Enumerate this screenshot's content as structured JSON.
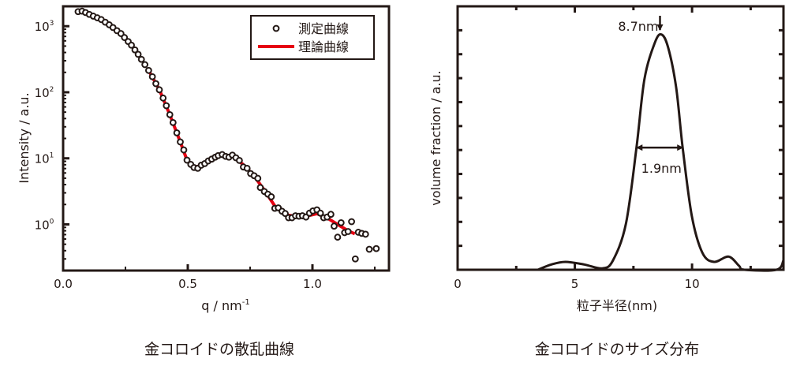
{
  "chart_data": [
    {
      "type": "scatter",
      "caption": "金コロイドの散乱曲線",
      "xlabel": "q / nm",
      "xlabel_superscript": "-1",
      "ylabel": "Intensity / a.u.",
      "xlim": [
        0,
        1.307
      ],
      "ylim": [
        0.2,
        2000
      ],
      "yscale": "log",
      "xticks": [
        0.0,
        0.5,
        1.0
      ],
      "xtick_labels": [
        "0.0",
        "0.5",
        "1.0"
      ],
      "yticks": [
        1,
        10,
        100,
        1000
      ],
      "ytick_labels": [
        {
          "base": "10",
          "exp": "0"
        },
        {
          "base": "10",
          "exp": "1"
        },
        {
          "base": "10",
          "exp": "2"
        },
        {
          "base": "10",
          "exp": "3"
        }
      ],
      "grid": false,
      "legend_position": "top-right",
      "colors": {
        "measured": "#231815",
        "theory": "#e60012",
        "frame": "#231815"
      },
      "series": [
        {
          "name": "測定曲線",
          "marker": "open-circle",
          "points": [
            [
              0.06,
              1660
            ],
            [
              0.076,
              1690
            ],
            [
              0.09,
              1610
            ],
            [
              0.105,
              1510
            ],
            [
              0.121,
              1420
            ],
            [
              0.137,
              1340
            ],
            [
              0.153,
              1260
            ],
            [
              0.169,
              1150
            ],
            [
              0.185,
              1050
            ],
            [
              0.2,
              955
            ],
            [
              0.216,
              855
            ],
            [
              0.232,
              773
            ],
            [
              0.246,
              674
            ],
            [
              0.261,
              587
            ],
            [
              0.274,
              516
            ],
            [
              0.288,
              438
            ],
            [
              0.301,
              375
            ],
            [
              0.314,
              315
            ],
            [
              0.328,
              262
            ],
            [
              0.343,
              214
            ],
            [
              0.358,
              172
            ],
            [
              0.372,
              135
            ],
            [
              0.386,
              109
            ],
            [
              0.401,
              81.7
            ],
            [
              0.414,
              62.6
            ],
            [
              0.428,
              45.8
            ],
            [
              0.441,
              34.8
            ],
            [
              0.456,
              24.3
            ],
            [
              0.47,
              17.7
            ],
            [
              0.484,
              13.4
            ],
            [
              0.497,
              9.38
            ],
            [
              0.512,
              8.09
            ],
            [
              0.525,
              7.26
            ],
            [
              0.54,
              7.06
            ],
            [
              0.554,
              7.87
            ],
            [
              0.568,
              8.32
            ],
            [
              0.582,
              9.12
            ],
            [
              0.596,
              9.73
            ],
            [
              0.61,
              10.4
            ],
            [
              0.622,
              11.0
            ],
            [
              0.638,
              11.4
            ],
            [
              0.652,
              10.7
            ],
            [
              0.665,
              10.4
            ],
            [
              0.679,
              11.2
            ],
            [
              0.693,
              10.2
            ],
            [
              0.707,
              9.29
            ],
            [
              0.723,
              7.39
            ],
            [
              0.738,
              7.06
            ],
            [
              0.752,
              5.88
            ],
            [
              0.766,
              5.46
            ],
            [
              0.781,
              4.98
            ],
            [
              0.791,
              3.61
            ],
            [
              0.807,
              3.15
            ],
            [
              0.821,
              2.87
            ],
            [
              0.835,
              2.62
            ],
            [
              0.849,
              1.75
            ],
            [
              0.863,
              1.78
            ],
            [
              0.878,
              1.58
            ],
            [
              0.891,
              1.46
            ],
            [
              0.904,
              1.26
            ],
            [
              0.918,
              1.26
            ],
            [
              0.932,
              1.35
            ],
            [
              0.946,
              1.33
            ],
            [
              0.96,
              1.35
            ],
            [
              0.974,
              1.29
            ],
            [
              0.988,
              1.48
            ],
            [
              1.002,
              1.6
            ],
            [
              1.018,
              1.66
            ],
            [
              1.032,
              1.48
            ],
            [
              1.045,
              1.26
            ],
            [
              1.059,
              1.29
            ],
            [
              1.074,
              1.42
            ],
            [
              1.087,
              0.94
            ],
            [
              1.101,
              0.64
            ],
            [
              1.115,
              1.06
            ],
            [
              1.129,
              0.75
            ],
            [
              1.143,
              0.78
            ],
            [
              1.157,
              1.1
            ],
            [
              1.172,
              0.3
            ],
            [
              1.184,
              0.76
            ],
            [
              1.198,
              0.73
            ],
            [
              1.213,
              0.71
            ],
            [
              1.228,
              0.42
            ],
            [
              1.256,
              0.43
            ]
          ]
        },
        {
          "name": "理論曲線",
          "marker": "line",
          "points": [
            [
              0.343,
              214
            ],
            [
              0.386,
              109
            ],
            [
              0.428,
              45.8
            ],
            [
              0.47,
              17.7
            ],
            [
              0.497,
              9.4
            ],
            [
              0.525,
              7.3
            ],
            [
              0.554,
              7.8
            ],
            [
              0.596,
              9.7
            ],
            [
              0.638,
              11.2
            ],
            [
              0.679,
              10.8
            ],
            [
              0.723,
              8.0
            ],
            [
              0.766,
              5.4
            ],
            [
              0.807,
              3.3
            ],
            [
              0.849,
              1.9
            ],
            [
              0.891,
              1.4
            ],
            [
              0.932,
              1.33
            ],
            [
              0.974,
              1.33
            ],
            [
              1.018,
              1.45
            ],
            [
              1.059,
              1.25
            ],
            [
              1.101,
              1.0
            ],
            [
              1.143,
              0.8
            ],
            [
              1.17,
              0.72
            ]
          ]
        }
      ]
    },
    {
      "type": "line",
      "caption": "金コロイドのサイズ分布",
      "xlabel": "粒子半径(nm)",
      "ylabel": "volume fraction / a.u.",
      "xlim": [
        0,
        13.9
      ],
      "ylim": [
        0,
        1.1
      ],
      "xticks": [
        0,
        5,
        10
      ],
      "xtick_labels": [
        "0",
        "5",
        "10"
      ],
      "yticks_unlabeled": [
        0.1,
        0.2,
        0.3,
        0.4,
        0.5,
        0.6,
        0.7,
        0.8,
        0.9,
        1.0
      ],
      "grid": false,
      "colors": {
        "line": "#231815",
        "frame": "#231815"
      },
      "series": [
        {
          "points": [
            [
              3.42,
              0
            ],
            [
              4.0,
              0.022
            ],
            [
              4.6,
              0.033
            ],
            [
              5.4,
              0.022
            ],
            [
              6.17,
              0.006
            ],
            [
              6.62,
              0.038
            ],
            [
              7.18,
              0.192
            ],
            [
              7.63,
              0.51
            ],
            [
              7.97,
              0.796
            ],
            [
              8.42,
              0.95
            ],
            [
              8.7,
              0.982
            ],
            [
              8.98,
              0.928
            ],
            [
              9.32,
              0.763
            ],
            [
              9.6,
              0.51
            ],
            [
              9.99,
              0.225
            ],
            [
              10.44,
              0.071
            ],
            [
              10.94,
              0.033
            ],
            [
              11.56,
              0.055
            ],
            [
              12.01,
              0.016
            ],
            [
              12.23,
              0
            ],
            [
              13.6,
              0
            ],
            [
              13.9,
              0.04
            ]
          ]
        }
      ],
      "annotations": [
        {
          "text": "8.7nm",
          "type": "peak-arrow",
          "x": 8.7
        },
        {
          "text": "1.9nm",
          "type": "width-double-arrow",
          "x_from": 7.65,
          "x_to": 9.6,
          "y": 0.51
        }
      ]
    }
  ]
}
